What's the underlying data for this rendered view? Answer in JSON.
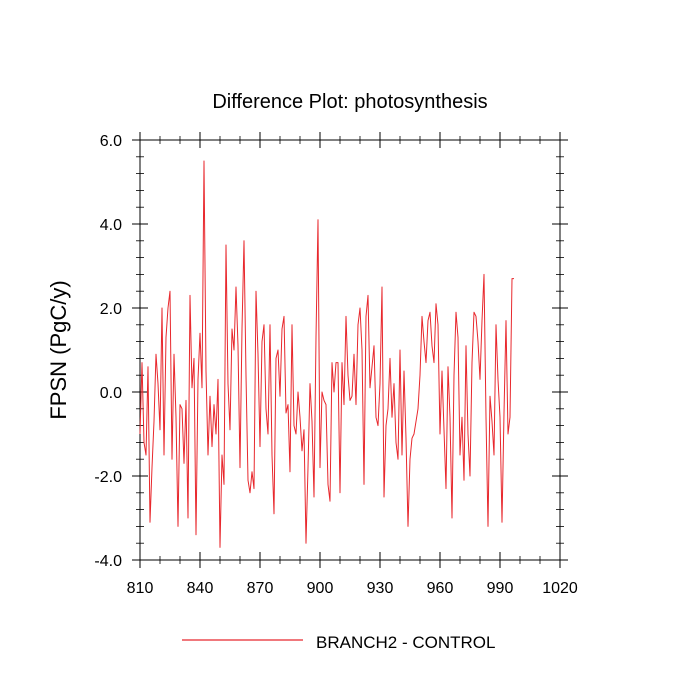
{
  "chart_data": {
    "type": "line",
    "title": "Difference Plot: photosynthesis",
    "xlabel": "",
    "ylabel": "FPSN  (PgC/y)",
    "xlim": [
      810,
      1020
    ],
    "ylim": [
      -4.0,
      6.0
    ],
    "x_ticks": [
      810,
      840,
      870,
      900,
      930,
      960,
      990,
      1020
    ],
    "x_tick_labels": [
      "810",
      "840",
      "870",
      "900",
      "930",
      "960",
      "990",
      "1020"
    ],
    "y_ticks": [
      -4.0,
      -2.0,
      0.0,
      2.0,
      4.0,
      6.0
    ],
    "y_tick_labels": [
      "-4.0",
      "-2.0",
      "0.0",
      "2.0",
      "4.0",
      "6.0"
    ],
    "series": [
      {
        "name": "BRANCH2 - CONTROL",
        "color": "#e8282d",
        "x_start": 810,
        "x_step": 1,
        "values": [
          -1.0,
          0.7,
          -1.2,
          -1.5,
          0.6,
          -3.1,
          -1.8,
          -0.7,
          0.9,
          0.2,
          -0.9,
          2.0,
          -1.5,
          1.3,
          2.0,
          2.4,
          -1.6,
          0.9,
          -0.6,
          -3.2,
          -0.3,
          -0.4,
          -1.7,
          -0.2,
          -3.0,
          2.3,
          0.1,
          0.8,
          -3.4,
          0.3,
          1.4,
          0.1,
          5.5,
          0.5,
          -1.5,
          -0.1,
          -1.3,
          -0.3,
          -1.0,
          0.3,
          -3.7,
          -1.5,
          -2.2,
          3.5,
          0.2,
          -0.9,
          1.5,
          1.0,
          2.5,
          1.1,
          -1.8,
          1.5,
          3.6,
          0.4,
          -2.1,
          -2.4,
          -1.9,
          -2.3,
          2.4,
          0.9,
          -1.3,
          1.2,
          1.6,
          -0.4,
          -1.0,
          1.6,
          -1.5,
          -2.9,
          0.8,
          1.0,
          -0.1,
          1.5,
          1.8,
          -0.5,
          -0.3,
          -1.9,
          1.6,
          -0.8,
          -1.0,
          0.0,
          -0.6,
          -1.4,
          -0.9,
          -3.6,
          -1.8,
          0.2,
          -0.7,
          -2.5,
          1.3,
          4.1,
          -1.8,
          0.0,
          -0.2,
          -0.3,
          -2.2,
          -2.6,
          0.7,
          0.0,
          0.7,
          0.7,
          -2.4,
          0.7,
          -0.3,
          1.8,
          0.4,
          -0.2,
          -0.1,
          0.9,
          -0.3,
          1.6,
          2.0,
          1.0,
          -2.2,
          1.8,
          2.3,
          0.1,
          0.6,
          1.1,
          -0.6,
          -0.8,
          0.2,
          2.5,
          -2.5,
          -0.8,
          -0.4,
          0.8,
          -0.6,
          0.2,
          -1.2,
          -1.6,
          1.0,
          -1.5,
          0.5,
          -1.1,
          -3.2,
          -1.6,
          -1.1,
          -1.0,
          -0.7,
          -0.4,
          0.4,
          1.8,
          1.2,
          0.7,
          1.7,
          1.9,
          1.1,
          0.7,
          2.1,
          1.6,
          -1.0,
          0.5,
          -0.9,
          -2.3,
          0.6,
          -0.6,
          -3.0,
          0.4,
          1.9,
          1.3,
          -1.5,
          -0.6,
          -2.1,
          1.1,
          -1.0,
          -2.0,
          0.7,
          1.9,
          1.8,
          1.2,
          0.3,
          1.7,
          2.8,
          -0.6,
          -3.2,
          -0.1,
          -0.7,
          -1.5,
          1.6,
          0.3,
          -0.6,
          -3.1,
          -0.5,
          1.7,
          -1.0,
          -0.6,
          2.7,
          2.7
        ]
      }
    ],
    "legend_position": "bottom-center"
  }
}
